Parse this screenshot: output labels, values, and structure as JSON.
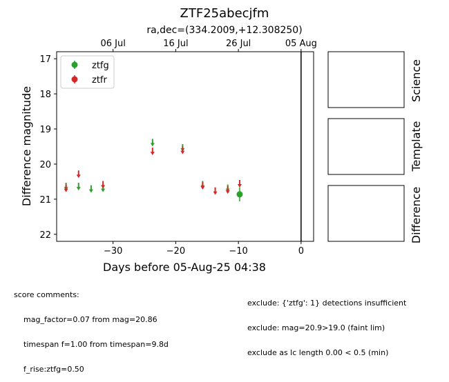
{
  "chart_data": {
    "type": "scatter",
    "title": "ZTF25abecjfm",
    "subtitle": "ra,dec=(334.2009,+12.308250)",
    "xlabel": "Days before 05-Aug-25 04:38",
    "ylabel": "Difference magnitude",
    "xlim": [
      -39,
      2
    ],
    "ylim": [
      22.2,
      16.8
    ],
    "y_inverted": true,
    "x_ticks": [
      -30,
      -20,
      -10,
      0
    ],
    "x_tick_labels": [
      "−30",
      "−20",
      "−10",
      "0"
    ],
    "y_ticks": [
      17,
      18,
      19,
      20,
      21,
      22
    ],
    "y_tick_labels": [
      "17",
      "18",
      "19",
      "20",
      "21",
      "22"
    ],
    "top_axis_ticks": [
      -30,
      -20,
      -10,
      0
    ],
    "top_axis_labels": [
      "06 Jul",
      "16 Jul",
      "26 Jul",
      "05 Aug"
    ],
    "vertical_line_x": 0,
    "grid": false,
    "legend_position": "top-left",
    "series": [
      {
        "name": "ztfg",
        "color": "#2ca02c",
        "detections": [
          {
            "x": -9.8,
            "y": 20.86,
            "err": 0.2
          }
        ],
        "upper_limits": [
          {
            "x": -37.5,
            "y": 20.65
          },
          {
            "x": -35.5,
            "y": 20.65
          },
          {
            "x": -33.5,
            "y": 20.72
          },
          {
            "x": -31.6,
            "y": 20.7
          },
          {
            "x": -23.7,
            "y": 19.4
          },
          {
            "x": -18.9,
            "y": 19.55
          },
          {
            "x": -15.7,
            "y": 20.6
          },
          {
            "x": -11.7,
            "y": 20.7
          }
        ]
      },
      {
        "name": "ztfr",
        "color": "#d62728",
        "detections": [],
        "upper_limits": [
          {
            "x": -37.5,
            "y": 20.7
          },
          {
            "x": -35.5,
            "y": 20.3
          },
          {
            "x": -31.6,
            "y": 20.6
          },
          {
            "x": -23.7,
            "y": 19.65
          },
          {
            "x": -18.9,
            "y": 19.62
          },
          {
            "x": -15.7,
            "y": 20.63
          },
          {
            "x": -13.7,
            "y": 20.78
          },
          {
            "x": -11.7,
            "y": 20.75
          },
          {
            "x": -9.8,
            "y": 20.57
          }
        ]
      }
    ]
  },
  "cutouts": {
    "science_label": "Science",
    "template_label": "Template",
    "difference_label": "Difference"
  },
  "comments": {
    "header": "score comments:",
    "left": [
      "mag_factor=0.07 from mag=20.86",
      "timespan f=1.00 from timespan=9.8d",
      "f_rise:ztfg=0.50"
    ],
    "right": [
      "exclude: {'ztfg': 1} detections insufficient",
      "exclude: mag=20.9>19.0 (faint lim)",
      "exclude as lc length 0.00 < 0.5 (min)"
    ]
  }
}
